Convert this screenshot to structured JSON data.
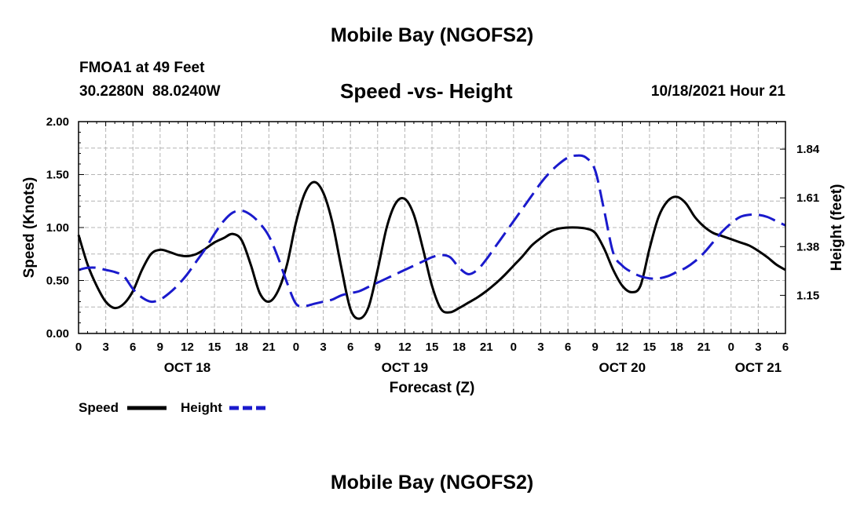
{
  "page": {
    "title": "Mobile Bay (NGOFS2)",
    "footer_title": "Mobile Bay (NGOFS2)"
  },
  "header": {
    "station": "FMOA1 at 49 Feet",
    "coords": "30.2280N  88.0240W",
    "subtitle": "Speed -vs- Height",
    "timestamp": "10/18/2021 Hour 21"
  },
  "legend": {
    "speed_label": "Speed",
    "height_label": "Height"
  },
  "colors": {
    "speed": "#000000",
    "height": "#1a1acc",
    "grid": "#b4b4b4"
  },
  "chart_data": {
    "type": "line",
    "title": "Speed -vs- Height",
    "xlabel": "Forecast (Z)",
    "ylabel": "Speed (Knots)",
    "y2label": "Height (feet)",
    "xlim": [
      0,
      78
    ],
    "ylim": [
      0,
      2.0
    ],
    "y2lim": [
      0.97,
      1.97
    ],
    "grid": true,
    "x_ticks": [
      0,
      3,
      6,
      9,
      12,
      15,
      18,
      21,
      24,
      27,
      30,
      33,
      36,
      39,
      42,
      45,
      48,
      51,
      54,
      57,
      60,
      63,
      66,
      69,
      72,
      75,
      78
    ],
    "x_tick_labels": [
      "0",
      "3",
      "6",
      "9",
      "12",
      "15",
      "18",
      "21",
      "0",
      "3",
      "6",
      "9",
      "12",
      "15",
      "18",
      "21",
      "0",
      "3",
      "6",
      "9",
      "12",
      "15",
      "18",
      "21",
      "0",
      "3",
      "6"
    ],
    "date_labels": [
      {
        "hour": 12,
        "label": "OCT 18"
      },
      {
        "hour": 36,
        "label": "OCT 19"
      },
      {
        "hour": 60,
        "label": "OCT 20"
      },
      {
        "hour": 75,
        "label": "OCT 21"
      }
    ],
    "y_ticks": [
      0,
      0.5,
      1.0,
      1.5,
      2.0
    ],
    "y_tick_labels": [
      "0.00",
      "0.50",
      "1.00",
      "1.50",
      "2.00"
    ],
    "y2_ticks": [
      1.15,
      1.38,
      1.61,
      1.84
    ],
    "y2_tick_labels": [
      "1.15",
      "1.38",
      "1.61",
      "1.84"
    ],
    "series": [
      {
        "name": "Speed",
        "axis": "left",
        "style": "solid",
        "x": [
          0,
          1,
          2,
          3,
          4,
          5,
          6,
          7,
          8,
          9,
          10,
          11,
          12,
          13,
          14,
          15,
          16,
          17,
          18,
          19,
          20,
          21,
          22,
          23,
          24,
          25,
          26,
          27,
          28,
          29,
          30,
          31,
          32,
          33,
          34,
          35,
          36,
          37,
          38,
          39,
          40,
          41,
          42,
          43,
          44,
          45,
          46,
          47,
          48,
          49,
          50,
          51,
          52,
          53,
          54,
          55,
          56,
          57,
          58,
          59,
          60,
          61,
          62,
          63,
          64,
          65,
          66,
          67,
          68,
          69,
          70,
          71,
          72,
          73,
          74,
          75,
          76,
          77,
          78
        ],
        "values": [
          0.93,
          0.65,
          0.45,
          0.3,
          0.24,
          0.28,
          0.4,
          0.6,
          0.75,
          0.79,
          0.77,
          0.74,
          0.73,
          0.75,
          0.8,
          0.86,
          0.9,
          0.94,
          0.88,
          0.65,
          0.38,
          0.3,
          0.4,
          0.65,
          1.05,
          1.33,
          1.43,
          1.33,
          1.05,
          0.62,
          0.23,
          0.14,
          0.25,
          0.6,
          1.0,
          1.23,
          1.27,
          1.12,
          0.8,
          0.45,
          0.23,
          0.2,
          0.24,
          0.29,
          0.34,
          0.4,
          0.47,
          0.55,
          0.64,
          0.73,
          0.83,
          0.9,
          0.96,
          0.99,
          1.0,
          1.0,
          0.99,
          0.95,
          0.8,
          0.6,
          0.45,
          0.39,
          0.45,
          0.8,
          1.1,
          1.25,
          1.29,
          1.23,
          1.1,
          1.01,
          0.95,
          0.92,
          0.89,
          0.86,
          0.83,
          0.78,
          0.72,
          0.65,
          0.6
        ]
      },
      {
        "name": "Height",
        "axis": "right",
        "style": "dashed",
        "x": [
          0,
          1,
          2,
          3,
          4,
          5,
          6,
          7,
          8,
          9,
          10,
          11,
          12,
          13,
          14,
          15,
          16,
          17,
          18,
          19,
          20,
          21,
          22,
          23,
          24,
          25,
          26,
          27,
          28,
          29,
          30,
          31,
          32,
          33,
          34,
          35,
          36,
          37,
          38,
          39,
          40,
          41,
          42,
          43,
          44,
          45,
          46,
          47,
          48,
          49,
          50,
          51,
          52,
          53,
          54,
          55,
          56,
          57,
          58,
          59,
          60,
          61,
          62,
          63,
          64,
          65,
          66,
          67,
          68,
          69,
          70,
          71,
          72,
          73,
          74,
          75,
          76,
          77,
          78
        ],
        "values": [
          1.27,
          1.28,
          1.28,
          1.27,
          1.26,
          1.24,
          1.18,
          1.14,
          1.12,
          1.13,
          1.16,
          1.2,
          1.25,
          1.31,
          1.37,
          1.44,
          1.5,
          1.54,
          1.55,
          1.53,
          1.49,
          1.43,
          1.33,
          1.21,
          1.11,
          1.1,
          1.11,
          1.12,
          1.13,
          1.15,
          1.16,
          1.17,
          1.19,
          1.21,
          1.23,
          1.25,
          1.27,
          1.29,
          1.31,
          1.33,
          1.34,
          1.33,
          1.28,
          1.25,
          1.27,
          1.32,
          1.38,
          1.44,
          1.5,
          1.56,
          1.62,
          1.68,
          1.73,
          1.77,
          1.8,
          1.81,
          1.8,
          1.74,
          1.55,
          1.35,
          1.29,
          1.26,
          1.24,
          1.23,
          1.23,
          1.24,
          1.26,
          1.28,
          1.31,
          1.35,
          1.4,
          1.45,
          1.49,
          1.52,
          1.53,
          1.53,
          1.52,
          1.5,
          1.48
        ]
      }
    ]
  }
}
